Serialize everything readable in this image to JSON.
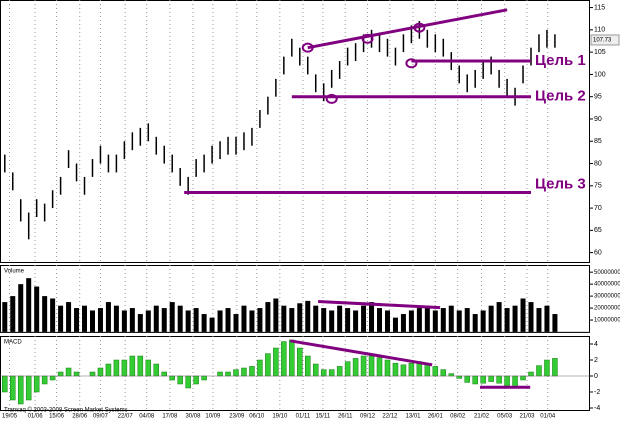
{
  "chart_data": [
    {
      "type": "ohlc",
      "color": "#000000",
      "line_color": "#800080",
      "xlim": [
        -0.6,
        73.4
      ],
      "ylim": [
        57.9,
        116.7
      ],
      "yticks": [
        60,
        65,
        70,
        75,
        80,
        85,
        90,
        95,
        100,
        105,
        110,
        115
      ],
      "xticks": [
        {
          "value": 0.6,
          "label": "19/05"
        },
        {
          "value": 3.8,
          "label": "01/06"
        },
        {
          "value": 6.5,
          "label": "15/06"
        },
        {
          "value": 9.4,
          "label": "28/06"
        },
        {
          "value": 12,
          "label": "09/07"
        },
        {
          "value": 15.1,
          "label": "22/07"
        },
        {
          "value": 17.8,
          "label": "04/08"
        },
        {
          "value": 20.7,
          "label": "17/08"
        },
        {
          "value": 23.6,
          "label": "30/08"
        },
        {
          "value": 26.1,
          "label": "10/09"
        },
        {
          "value": 29.1,
          "label": "23/09"
        },
        {
          "value": 31.6,
          "label": "06/10"
        },
        {
          "value": 34.5,
          "label": "19/10"
        },
        {
          "value": 37.4,
          "label": "01/11"
        },
        {
          "value": 39.9,
          "label": "15/11"
        },
        {
          "value": 42.7,
          "label": "26/11"
        },
        {
          "value": 45.5,
          "label": "09/12"
        },
        {
          "value": 48.3,
          "label": "22/12"
        },
        {
          "value": 51.2,
          "label": "13/01"
        },
        {
          "value": 54,
          "label": "26/01"
        },
        {
          "value": 56.8,
          "label": "08/02"
        },
        {
          "value": 59.8,
          "label": "21/02"
        },
        {
          "value": 62.7,
          "label": "05/03"
        },
        {
          "value": 65.5,
          "label": "21/03"
        },
        {
          "value": 68.1,
          "label": "01/04"
        }
      ],
      "high": [
        82,
        78,
        72,
        69,
        72,
        71,
        74,
        77,
        83,
        80,
        77,
        81,
        84,
        82,
        82,
        85,
        87,
        88,
        89,
        86,
        84,
        82,
        79,
        77,
        81,
        82,
        84,
        85,
        86,
        86,
        87,
        88,
        92,
        95,
        99,
        104,
        108,
        106,
        104,
        100,
        98,
        101,
        103,
        106,
        107,
        109,
        110,
        109,
        108,
        106,
        109,
        111,
        112,
        110,
        109,
        108,
        105,
        102,
        100,
        101,
        103,
        104,
        101,
        99,
        97,
        102,
        106,
        109,
        110,
        109
      ],
      "low": [
        78,
        74,
        67,
        63,
        68,
        67,
        70,
        73,
        79,
        76,
        73,
        77,
        80,
        78,
        78,
        81,
        83,
        84,
        85,
        82,
        80,
        78,
        75,
        73,
        77,
        78,
        80,
        81,
        82,
        82,
        83,
        84,
        88,
        91,
        95,
        100,
        104,
        102,
        100,
        96,
        94,
        97,
        99,
        102,
        103,
        105,
        106,
        105,
        104,
        102,
        105,
        107,
        108,
        106,
        105,
        104,
        101,
        98,
        96,
        97,
        99,
        100,
        97,
        95,
        93,
        98,
        102,
        105,
        106,
        106
      ],
      "last_price": 107.73,
      "lines": [
        {
          "x": [
            38,
            63
          ],
          "y": [
            106,
            114.5
          ]
        },
        {
          "x": [
            51,
            66
          ],
          "y": [
            103,
            103
          ],
          "label": "Цель 1"
        },
        {
          "x": [
            36,
            66
          ],
          "y": [
            95,
            95
          ],
          "label": "Цель 2"
        },
        {
          "x": [
            22.5,
            66
          ],
          "y": [
            73.5,
            73.5
          ],
          "label": "Цель 3"
        }
      ],
      "markers": [
        {
          "x": 38,
          "y": 106
        },
        {
          "x": 45.5,
          "y": 108
        },
        {
          "x": 52,
          "y": 110.5
        },
        {
          "x": 51,
          "y": 102.5
        },
        {
          "x": 41,
          "y": 94.5
        }
      ]
    },
    {
      "type": "bar",
      "title": "Volume",
      "color": "#000000",
      "line_color": "#800080",
      "xlim": [
        -0.6,
        73.4
      ],
      "ylim": [
        0,
        56000000
      ],
      "yticks": [
        10000000,
        20000000,
        30000000,
        40000000,
        50000000
      ],
      "values": [
        25000000,
        30000000,
        40000000,
        45000000,
        38000000,
        30000000,
        28000000,
        22000000,
        25000000,
        20000000,
        22000000,
        18000000,
        20000000,
        25000000,
        22000000,
        18000000,
        20000000,
        15000000,
        18000000,
        22000000,
        20000000,
        25000000,
        22000000,
        18000000,
        20000000,
        15000000,
        12000000,
        18000000,
        20000000,
        15000000,
        22000000,
        18000000,
        20000000,
        25000000,
        28000000,
        22000000,
        20000000,
        24000000,
        26000000,
        22000000,
        20000000,
        18000000,
        22000000,
        20000000,
        18000000,
        22000000,
        25000000,
        20000000,
        18000000,
        12000000,
        15000000,
        18000000,
        20000000,
        22000000,
        18000000,
        20000000,
        22000000,
        18000000,
        20000000,
        15000000,
        18000000,
        22000000,
        25000000,
        20000000,
        22000000,
        28000000,
        25000000,
        20000000,
        22000000,
        15000000
      ],
      "lines": [
        {
          "x": [
            39.3,
            54.6
          ],
          "y": [
            25500000,
            20400000
          ]
        }
      ]
    },
    {
      "type": "bar",
      "title": "MACD",
      "color": "#33cc33",
      "line_color": "#800080",
      "xlim": [
        -0.6,
        73.4
      ],
      "ylim": [
        -4.25,
        5
      ],
      "yticks": [
        -4,
        -2,
        0,
        2,
        4
      ],
      "values": [
        -2,
        -3,
        -3.5,
        -3,
        -2,
        -1,
        -0.5,
        0.5,
        1,
        0.5,
        0,
        0.5,
        1,
        1.5,
        2,
        2,
        2.5,
        2.5,
        2,
        1.5,
        0.5,
        -0.5,
        -1,
        -1.5,
        -1,
        -0.5,
        0,
        0.5,
        0.5,
        0.8,
        1,
        1.2,
        2,
        2.8,
        3.5,
        4.3,
        4.5,
        3.5,
        2.5,
        1.5,
        0.8,
        0.8,
        1.2,
        1.8,
        2.2,
        2.5,
        2.5,
        2.3,
        2,
        1.6,
        1.4,
        1.6,
        1.8,
        1.6,
        1.2,
        0.8,
        0.3,
        -0.3,
        -0.8,
        -1,
        -0.9,
        -0.7,
        -0.9,
        -1.2,
        -1.3,
        -0.5,
        0.5,
        1.3,
        2,
        2.2
      ],
      "lines": [
        {
          "x": [
            35.8,
            53.6
          ],
          "y": [
            4.4,
            1.4
          ]
        },
        {
          "x": [
            59.6,
            65.9
          ],
          "y": [
            -1.4,
            -1.4
          ]
        }
      ]
    }
  ],
  "footer": "Transaq © 2003-2008 Screen Market Systems"
}
